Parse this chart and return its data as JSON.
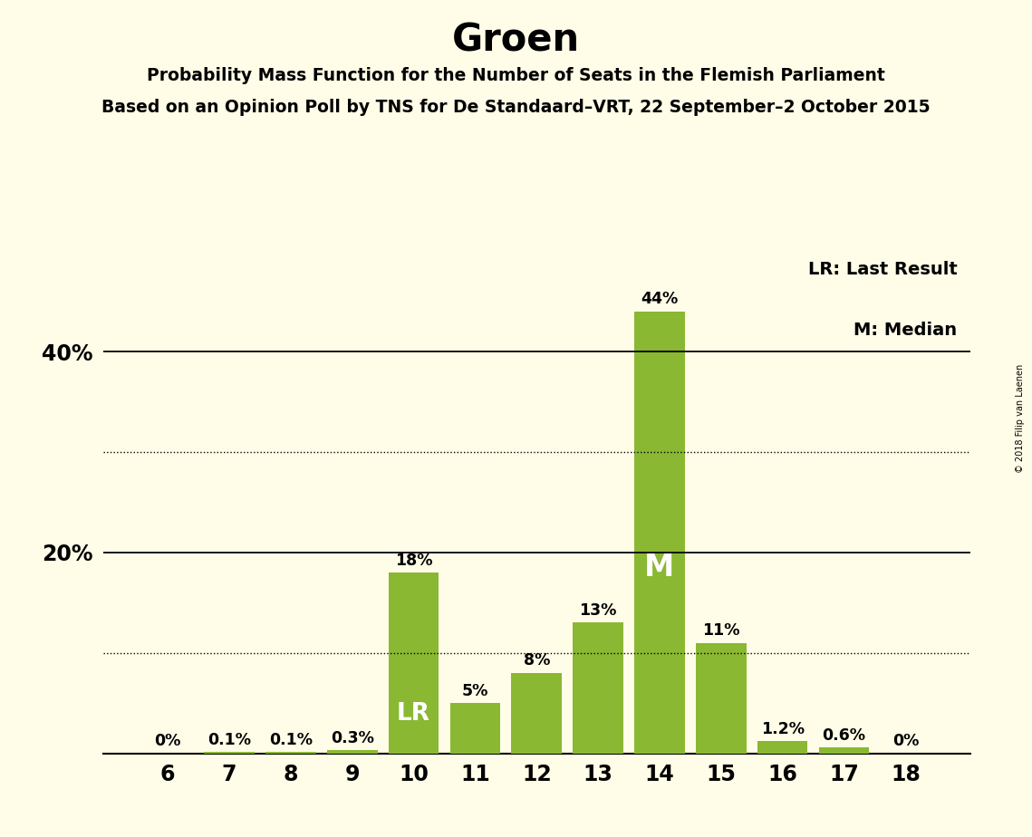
{
  "title": "Groen",
  "subtitle1": "Probability Mass Function for the Number of Seats in the Flemish Parliament",
  "subtitle2": "Based on an Opinion Poll by TNS for De Standaard–VRT, 22 September–2 October 2015",
  "copyright": "© 2018 Filip van Laenen",
  "categories": [
    6,
    7,
    8,
    9,
    10,
    11,
    12,
    13,
    14,
    15,
    16,
    17,
    18
  ],
  "values": [
    0.0,
    0.1,
    0.1,
    0.3,
    18.0,
    5.0,
    8.0,
    13.0,
    44.0,
    11.0,
    1.2,
    0.6,
    0.0
  ],
  "labels": [
    "0%",
    "0.1%",
    "0.1%",
    "0.3%",
    "18%",
    "5%",
    "8%",
    "13%",
    "44%",
    "11%",
    "1.2%",
    "0.6%",
    "0%"
  ],
  "bar_color": "#8ab832",
  "background_color": "#fffde8",
  "lr_bar": 10,
  "median_bar": 14,
  "yticks": [
    20,
    40
  ],
  "ytick_labels": [
    "20%",
    "40%"
  ],
  "dotted_lines": [
    10.0,
    30.0
  ],
  "solid_lines": [
    20.0,
    40.0
  ],
  "legend_lr": "LR: Last Result",
  "legend_m": "M: Median",
  "ylim": [
    0,
    50
  ]
}
